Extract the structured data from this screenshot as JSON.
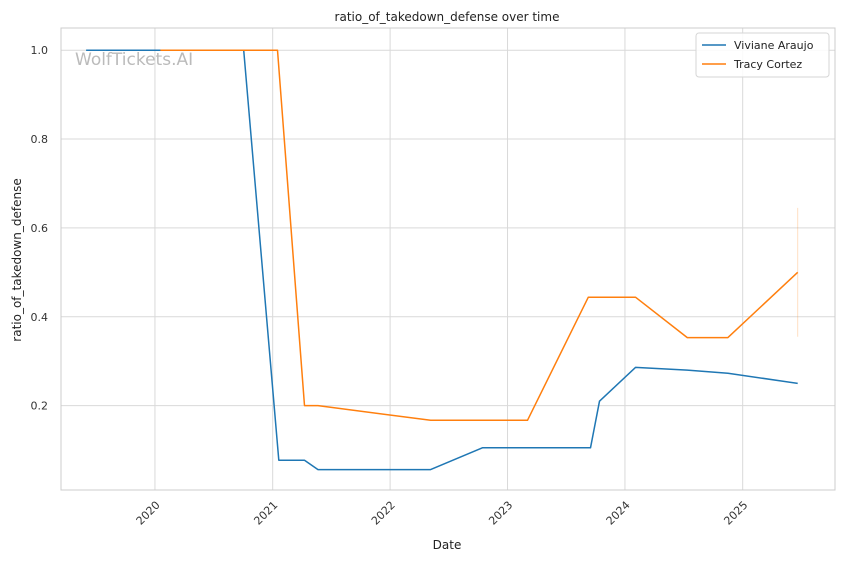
{
  "chart_data": {
    "type": "line",
    "title": "ratio_of_takedown_defense over time",
    "xlabel": "Date",
    "ylabel": "ratio_of_takedown_defense",
    "watermark": "WolfTickets.AI",
    "x_ticks": [
      "2020",
      "2021",
      "2022",
      "2023",
      "2024",
      "2025"
    ],
    "y_ticks": [
      "0.2",
      "0.4",
      "0.6",
      "0.8",
      "1.0"
    ],
    "xlim": [
      "2019-03-15",
      "2025-10-15"
    ],
    "ylim": [
      0.01,
      1.05
    ],
    "grid": true,
    "legend_position": "top-right",
    "series": [
      {
        "name": "Viviane Araujo",
        "color": "#1f77b4",
        "points": [
          [
            "2019-06-01",
            1.0
          ],
          [
            "2020-10-03",
            1.0
          ],
          [
            "2021-01-20",
            0.077
          ],
          [
            "2021-04-10",
            0.077
          ],
          [
            "2021-05-22",
            0.056
          ],
          [
            "2022-05-07",
            0.056
          ],
          [
            "2022-10-15",
            0.105
          ],
          [
            "2023-09-16",
            0.105
          ],
          [
            "2023-10-14",
            0.21
          ],
          [
            "2024-02-03",
            0.286
          ],
          [
            "2024-07-13",
            0.28
          ],
          [
            "2024-11-16",
            0.273
          ],
          [
            "2025-06-21",
            0.25
          ]
        ]
      },
      {
        "name": "Tracy Cortez",
        "color": "#ff7f0e",
        "points": [
          [
            "2020-01-18",
            1.0
          ],
          [
            "2021-01-16",
            1.0
          ],
          [
            "2021-04-10",
            0.2
          ],
          [
            "2021-05-22",
            0.2
          ],
          [
            "2022-05-07",
            0.167
          ],
          [
            "2023-03-04",
            0.167
          ],
          [
            "2023-09-09",
            0.444
          ],
          [
            "2024-02-03",
            0.444
          ],
          [
            "2024-07-13",
            0.353
          ],
          [
            "2024-11-16",
            0.353
          ],
          [
            "2025-06-21",
            0.5
          ]
        ]
      }
    ],
    "error_bar": {
      "series": "Tracy Cortez",
      "x": "2025-06-21",
      "low": 0.355,
      "high": 0.645
    }
  }
}
